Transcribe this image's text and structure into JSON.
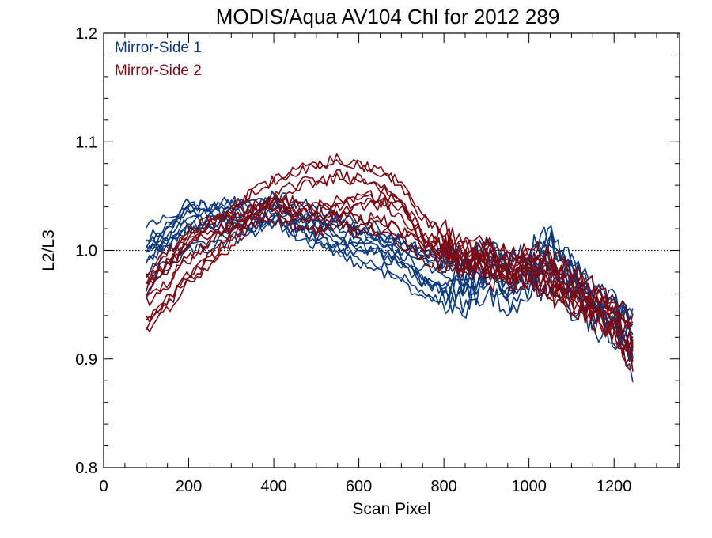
{
  "chart_data": {
    "type": "line",
    "title": "MODIS/Aqua AV104 Chl for 2012 289",
    "xlabel": "Scan Pixel",
    "ylabel": "L2/L3",
    "xlim": [
      0,
      1354
    ],
    "ylim": [
      0.8,
      1.2
    ],
    "x_ticks": [
      0,
      200,
      400,
      600,
      800,
      1000,
      1200
    ],
    "x_tick_labels": [
      "0",
      "200",
      "400",
      "600",
      "800",
      "1000",
      "1200"
    ],
    "y_ticks": [
      0.8,
      0.9,
      1.0,
      1.1,
      1.2
    ],
    "y_tick_labels": [
      "0.8",
      "0.9",
      "1.0",
      "1.1",
      "1.2"
    ],
    "reference_line": 1.0,
    "legend_placement": "top-left",
    "grid": false,
    "colors": {
      "mirror_side_1": "#0d3a7d",
      "mirror_side_2": "#7a0a14",
      "axes": "#000000"
    },
    "series": [
      {
        "name": "Mirror-Side 1",
        "color": "#0d3a7d",
        "x": [
          100,
          150,
          200,
          250,
          300,
          350,
          400,
          450,
          500,
          550,
          600,
          650,
          700,
          750,
          800,
          850,
          900,
          950,
          1000,
          1050,
          1100,
          1150,
          1200,
          1250
        ],
        "y": [
          1.01,
          1.02,
          1.035,
          1.03,
          1.035,
          1.03,
          1.04,
          1.035,
          1.03,
          1.02,
          1.02,
          1.01,
          1.0,
          0.99,
          0.985,
          0.98,
          0.99,
          0.975,
          0.985,
          0.995,
          0.975,
          0.955,
          0.945,
          0.92
        ]
      },
      {
        "name": "",
        "color": "#0d3a7d",
        "x": [
          100,
          150,
          200,
          250,
          300,
          350,
          400,
          450,
          500,
          550,
          600,
          650,
          700,
          750,
          800,
          850,
          900,
          950,
          1000,
          1050,
          1100,
          1150,
          1200,
          1250
        ],
        "y": [
          0.99,
          1.005,
          1.02,
          1.02,
          1.02,
          1.02,
          1.025,
          1.02,
          1.01,
          1.0,
          1.0,
          0.995,
          0.985,
          0.97,
          0.96,
          0.965,
          0.975,
          0.96,
          0.975,
          0.98,
          0.965,
          0.945,
          0.93,
          0.9
        ]
      },
      {
        "name": "",
        "color": "#0d3a7d",
        "x": [
          100,
          150,
          200,
          250,
          300,
          350,
          400,
          450,
          500,
          550,
          600,
          650,
          700,
          750,
          800,
          850,
          900,
          950,
          1000,
          1050,
          1100,
          1150,
          1200,
          1250
        ],
        "y": [
          1.0,
          1.015,
          1.04,
          1.035,
          1.04,
          1.04,
          1.045,
          1.03,
          1.025,
          1.025,
          1.015,
          1.01,
          1.005,
          0.995,
          0.99,
          0.99,
          1.0,
          0.985,
          0.995,
          1.01,
          0.985,
          0.96,
          0.95,
          0.93
        ]
      },
      {
        "name": "",
        "color": "#0d3a7d",
        "x": [
          100,
          150,
          200,
          250,
          300,
          350,
          400,
          450,
          500,
          550,
          600,
          650,
          700,
          750,
          800,
          850,
          900,
          950,
          1000,
          1050,
          1100,
          1150,
          1200,
          1250
        ],
        "y": [
          0.97,
          0.995,
          1.01,
          1.01,
          1.015,
          1.025,
          1.035,
          1.02,
          1.015,
          1.005,
          0.995,
          0.99,
          0.98,
          0.965,
          0.955,
          0.955,
          0.97,
          0.955,
          0.97,
          0.975,
          0.955,
          0.94,
          0.925,
          0.895
        ]
      }
    ]
  },
  "legend": {
    "mirror_side_1": "Mirror-Side 1",
    "mirror_side_2": "Mirror-Side 2"
  }
}
